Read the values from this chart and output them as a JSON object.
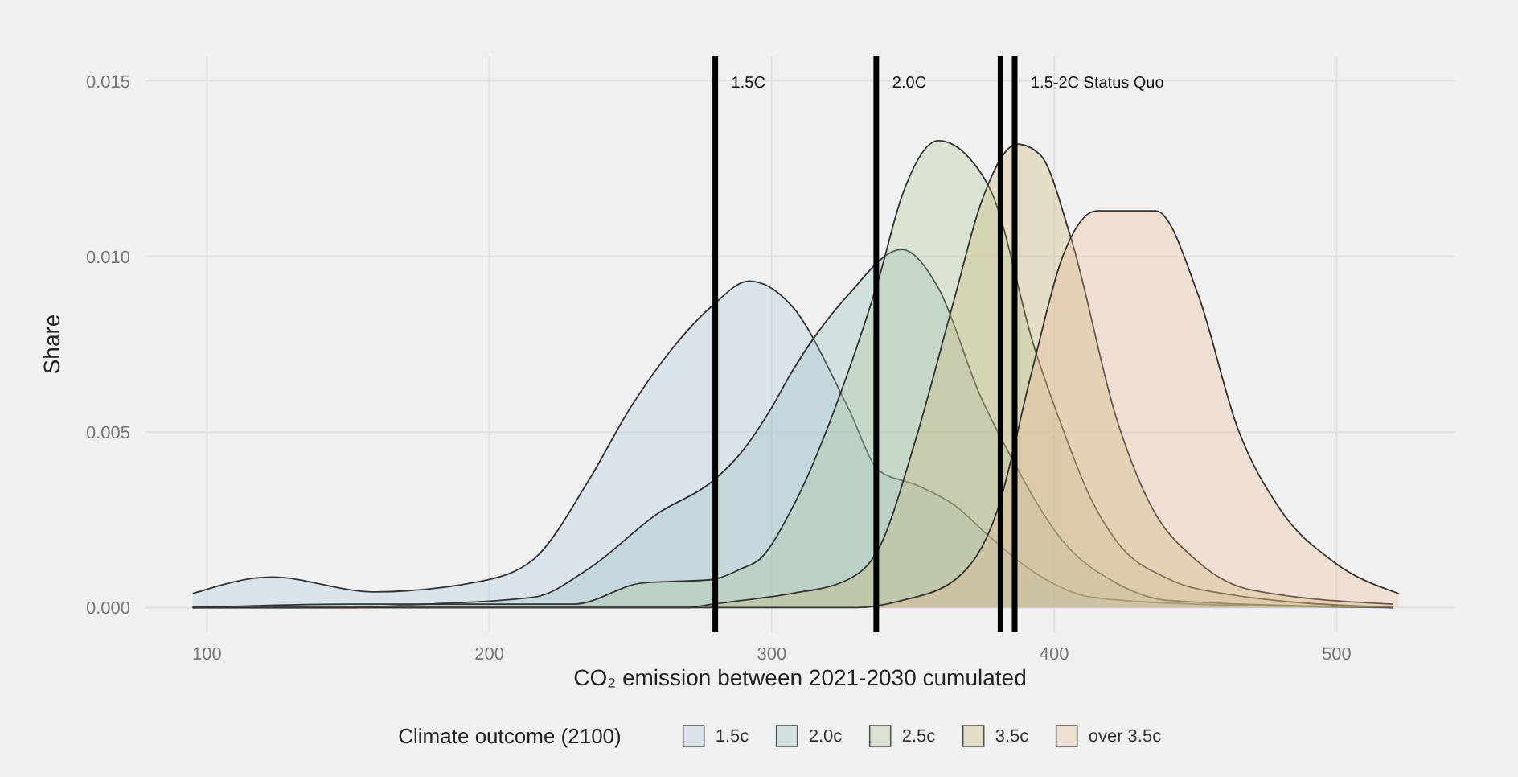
{
  "chart_data": {
    "type": "area",
    "xlabel": "CO₂ emission between 2021-2030 cumulated",
    "ylabel": "Share",
    "legend_title": "Climate outcome (2100)",
    "legend": "bottom",
    "grid": true,
    "xlim": [
      78,
      542
    ],
    "ylim": [
      -0.0007,
      0.0157
    ],
    "xticks": [
      100,
      200,
      300,
      400,
      500
    ],
    "yticks": [
      {
        "value": 0,
        "label": "0.000"
      },
      {
        "value": 0.005,
        "label": "0.005"
      },
      {
        "value": 0.01,
        "label": "0.010"
      },
      {
        "value": 0.015,
        "label": "0.015"
      }
    ],
    "series": [
      {
        "name": "1.5c",
        "color": "#a9c3df",
        "x": [
          95,
          123,
          159,
          197,
          216,
          235,
          250,
          264,
          279,
          292,
          307,
          327,
          338,
          351,
          365,
          376,
          393,
          413,
          450,
          520
        ],
        "values": [
          0.0004,
          0.00087,
          0.00045,
          0.00075,
          0.0014,
          0.0036,
          0.0057,
          0.0073,
          0.0086,
          0.0093,
          0.0086,
          0.0057,
          0.0039,
          0.0035,
          0.0029,
          0.0021,
          0.001,
          0.0003,
          0.0001,
          0
        ]
      },
      {
        "name": "2.0c",
        "color": "#8fbdbd",
        "x": [
          95,
          147,
          178,
          216,
          235,
          260,
          279,
          289,
          300,
          307,
          327,
          346,
          359,
          374,
          384,
          403,
          422,
          441,
          520
        ],
        "values": [
          0,
          0,
          0.0001,
          0.0003,
          0.0011,
          0.0027,
          0.0036,
          0.0044,
          0.0057,
          0.0067,
          0.0089,
          0.0102,
          0.0091,
          0.006,
          0.0044,
          0.0019,
          0.0007,
          0.0002,
          0
        ]
      },
      {
        "name": "2.5c",
        "color": "#a9c595",
        "x": [
          95,
          150,
          230,
          254,
          279,
          289,
          296,
          307,
          327,
          338,
          346,
          359,
          370,
          378,
          393,
          403,
          413,
          422,
          441,
          460,
          520
        ],
        "values": [
          0,
          0.0001,
          0.0001,
          0.0007,
          0.0008,
          0.0011,
          0.0014,
          0.0028,
          0.0067,
          0.0094,
          0.0117,
          0.0133,
          0.0128,
          0.0118,
          0.0074,
          0.0051,
          0.0031,
          0.0019,
          0.0008,
          0.0004,
          0
        ]
      },
      {
        "name": "3.5c",
        "color": "#cbb46a",
        "x": [
          95,
          270,
          279,
          289,
          307,
          327,
          338,
          351,
          365,
          374,
          387,
          395,
          406,
          422,
          433,
          451,
          470,
          520
        ],
        "values": [
          0,
          0,
          0.0001,
          0.0002,
          0.0004,
          0.0008,
          0.0017,
          0.0048,
          0.0089,
          0.0115,
          0.0132,
          0.0129,
          0.0105,
          0.0054,
          0.0031,
          0.0013,
          0.0005,
          0.0001
        ]
      },
      {
        "name": "over 3.5c",
        "color": "#efb58e",
        "x": [
          95,
          330,
          346,
          365,
          380,
          392,
          403,
          415,
          436,
          451,
          465,
          480,
          499,
          522
        ],
        "values": [
          0,
          0,
          0.0002,
          0.0008,
          0.0028,
          0.0067,
          0.01,
          0.0113,
          0.0113,
          0.0089,
          0.0051,
          0.0028,
          0.0013,
          0.0004
        ]
      }
    ],
    "ref_lines": [
      {
        "axis": "x",
        "value": 280,
        "label": "1.5C",
        "color": "#000000"
      },
      {
        "axis": "x",
        "value": 337,
        "label": "2.0C",
        "color": "#000000"
      },
      {
        "axis": "x",
        "value": 381,
        "label": null,
        "color": "#000000"
      },
      {
        "axis": "x",
        "value": 386,
        "label": "1.5-2C Status Quo",
        "color": "#000000"
      }
    ]
  }
}
